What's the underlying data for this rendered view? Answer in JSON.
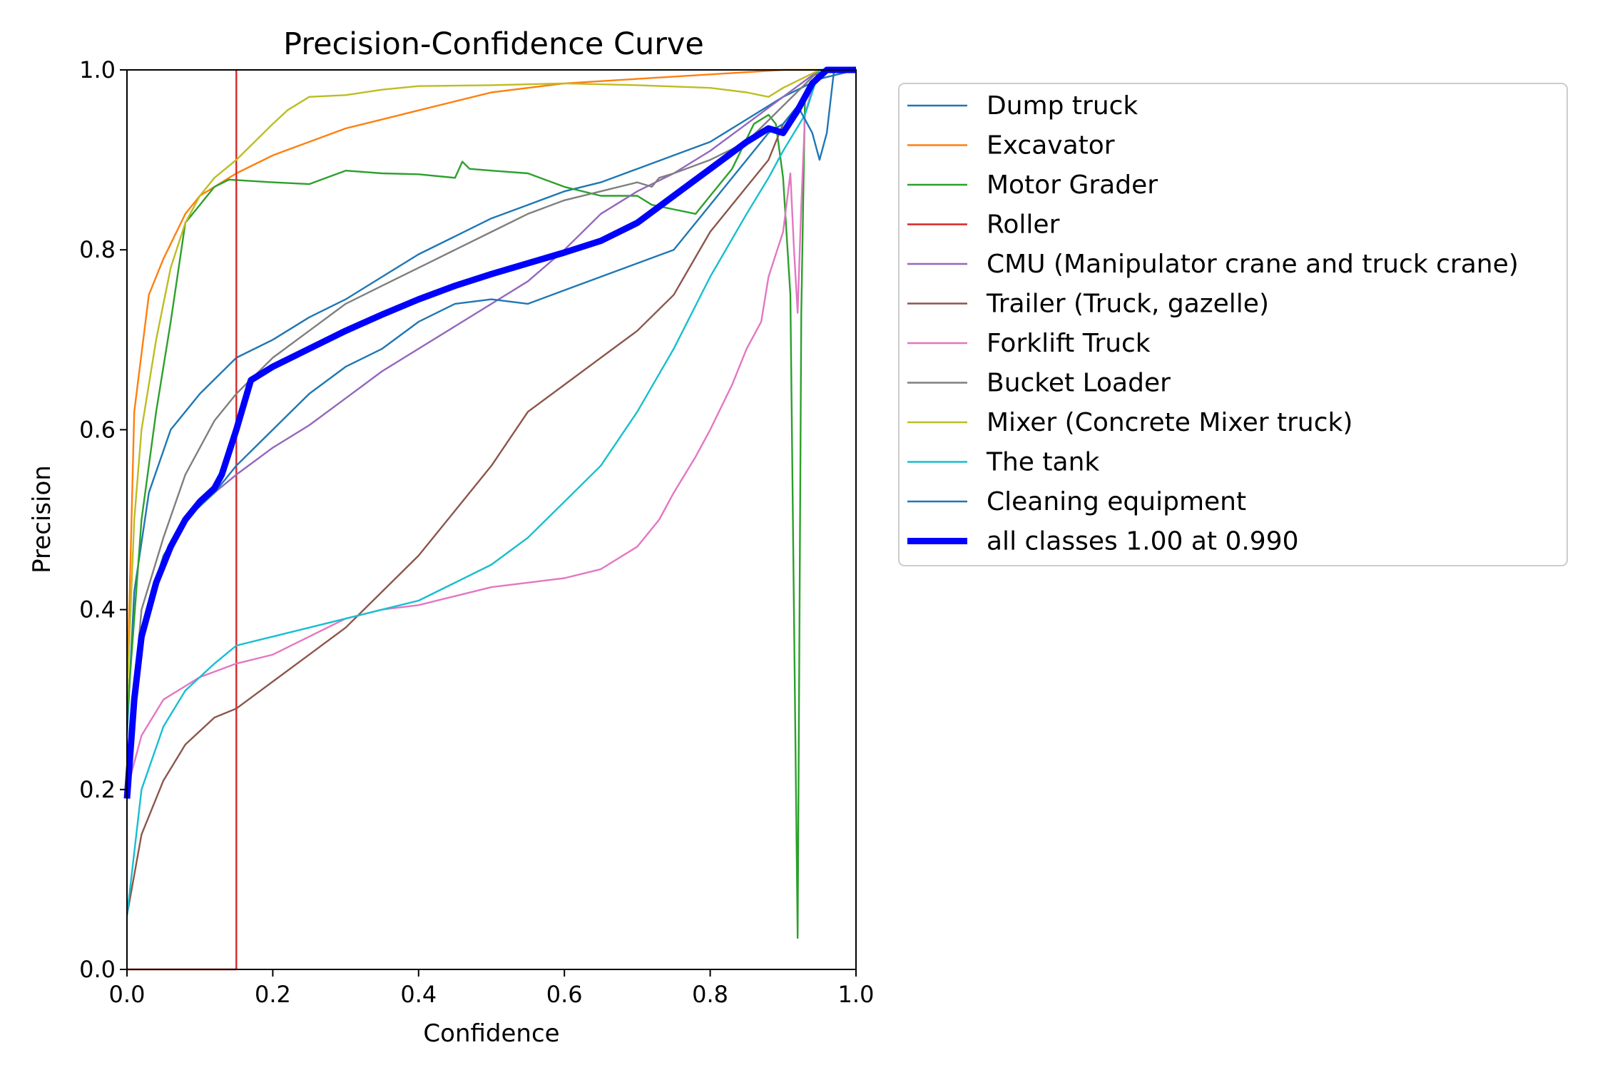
{
  "chart_data": {
    "type": "line",
    "title": "Precision-Confidence Curve",
    "xlabel": "Confidence",
    "ylabel": "Precision",
    "xlim": [
      0.0,
      1.0
    ],
    "ylim": [
      0.0,
      1.0
    ],
    "xticks": [
      "0.0",
      "0.2",
      "0.4",
      "0.6",
      "0.8",
      "1.0"
    ],
    "yticks": [
      "0.0",
      "0.2",
      "0.4",
      "0.6",
      "0.8",
      "1.0"
    ],
    "grid": false,
    "legend_position": "outside-right",
    "series": [
      {
        "name": "Dump truck",
        "color": "#1f77b4",
        "points": [
          [
            0.0,
            0.26
          ],
          [
            0.01,
            0.42
          ],
          [
            0.03,
            0.53
          ],
          [
            0.06,
            0.6
          ],
          [
            0.1,
            0.64
          ],
          [
            0.15,
            0.68
          ],
          [
            0.2,
            0.7
          ],
          [
            0.25,
            0.725
          ],
          [
            0.3,
            0.745
          ],
          [
            0.35,
            0.77
          ],
          [
            0.4,
            0.795
          ],
          [
            0.45,
            0.815
          ],
          [
            0.5,
            0.835
          ],
          [
            0.55,
            0.85
          ],
          [
            0.6,
            0.865
          ],
          [
            0.65,
            0.875
          ],
          [
            0.7,
            0.89
          ],
          [
            0.75,
            0.905
          ],
          [
            0.8,
            0.92
          ],
          [
            0.85,
            0.945
          ],
          [
            0.9,
            0.97
          ],
          [
            0.95,
            0.99
          ],
          [
            1.0,
            1.0
          ]
        ]
      },
      {
        "name": "Excavator",
        "color": "#ff7f0e",
        "points": [
          [
            0.0,
            0.3
          ],
          [
            0.01,
            0.62
          ],
          [
            0.03,
            0.75
          ],
          [
            0.05,
            0.79
          ],
          [
            0.08,
            0.84
          ],
          [
            0.1,
            0.86
          ],
          [
            0.15,
            0.885
          ],
          [
            0.2,
            0.905
          ],
          [
            0.25,
            0.92
          ],
          [
            0.3,
            0.935
          ],
          [
            0.35,
            0.945
          ],
          [
            0.4,
            0.955
          ],
          [
            0.45,
            0.965
          ],
          [
            0.5,
            0.975
          ],
          [
            0.6,
            0.985
          ],
          [
            0.7,
            0.99
          ],
          [
            0.8,
            0.995
          ],
          [
            0.9,
            1.0
          ],
          [
            1.0,
            1.0
          ]
        ]
      },
      {
        "name": "Motor Grader",
        "color": "#2ca02c",
        "points": [
          [
            0.0,
            0.28
          ],
          [
            0.02,
            0.5
          ],
          [
            0.04,
            0.62
          ],
          [
            0.06,
            0.72
          ],
          [
            0.08,
            0.83
          ],
          [
            0.1,
            0.85
          ],
          [
            0.12,
            0.87
          ],
          [
            0.14,
            0.878
          ],
          [
            0.2,
            0.875
          ],
          [
            0.25,
            0.873
          ],
          [
            0.3,
            0.888
          ],
          [
            0.35,
            0.885
          ],
          [
            0.4,
            0.884
          ],
          [
            0.45,
            0.88
          ],
          [
            0.46,
            0.898
          ],
          [
            0.47,
            0.89
          ],
          [
            0.5,
            0.888
          ],
          [
            0.55,
            0.885
          ],
          [
            0.6,
            0.87
          ],
          [
            0.65,
            0.86
          ],
          [
            0.7,
            0.86
          ],
          [
            0.72,
            0.85
          ],
          [
            0.75,
            0.845
          ],
          [
            0.78,
            0.84
          ],
          [
            0.8,
            0.86
          ],
          [
            0.83,
            0.89
          ],
          [
            0.86,
            0.94
          ],
          [
            0.88,
            0.95
          ],
          [
            0.89,
            0.94
          ],
          [
            0.9,
            0.88
          ],
          [
            0.91,
            0.75
          ],
          [
            0.92,
            0.035
          ],
          [
            0.925,
            0.73
          ],
          [
            0.93,
            0.97
          ],
          [
            0.95,
            1.0
          ],
          [
            1.0,
            1.0
          ]
        ]
      },
      {
        "name": "Roller",
        "color": "#d62728",
        "points": [
          [
            0.0,
            0.0
          ],
          [
            0.15,
            0.0
          ],
          [
            0.15,
            1.0
          ]
        ]
      },
      {
        "name": "CMU (Manipulator crane and truck crane)",
        "color": "#9467bd",
        "points": [
          [
            0.0,
            0.2
          ],
          [
            0.02,
            0.36
          ],
          [
            0.05,
            0.45
          ],
          [
            0.08,
            0.5
          ],
          [
            0.12,
            0.53
          ],
          [
            0.15,
            0.55
          ],
          [
            0.2,
            0.58
          ],
          [
            0.25,
            0.605
          ],
          [
            0.3,
            0.635
          ],
          [
            0.35,
            0.665
          ],
          [
            0.4,
            0.69
          ],
          [
            0.45,
            0.715
          ],
          [
            0.5,
            0.74
          ],
          [
            0.55,
            0.765
          ],
          [
            0.6,
            0.8
          ],
          [
            0.65,
            0.84
          ],
          [
            0.7,
            0.865
          ],
          [
            0.75,
            0.885
          ],
          [
            0.8,
            0.91
          ],
          [
            0.85,
            0.94
          ],
          [
            0.9,
            0.97
          ],
          [
            0.95,
            1.0
          ],
          [
            1.0,
            1.0
          ]
        ]
      },
      {
        "name": "Trailer (Truck, gazelle)",
        "color": "#8c564b",
        "points": [
          [
            0.0,
            0.06
          ],
          [
            0.02,
            0.15
          ],
          [
            0.05,
            0.21
          ],
          [
            0.08,
            0.25
          ],
          [
            0.12,
            0.28
          ],
          [
            0.15,
            0.29
          ],
          [
            0.2,
            0.32
          ],
          [
            0.25,
            0.35
          ],
          [
            0.3,
            0.38
          ],
          [
            0.35,
            0.42
          ],
          [
            0.4,
            0.46
          ],
          [
            0.45,
            0.51
          ],
          [
            0.5,
            0.56
          ],
          [
            0.55,
            0.62
          ],
          [
            0.6,
            0.65
          ],
          [
            0.65,
            0.68
          ],
          [
            0.7,
            0.71
          ],
          [
            0.75,
            0.75
          ],
          [
            0.8,
            0.82
          ],
          [
            0.85,
            0.87
          ],
          [
            0.88,
            0.9
          ],
          [
            0.9,
            0.94
          ],
          [
            0.93,
            0.97
          ],
          [
            0.95,
            1.0
          ],
          [
            1.0,
            1.0
          ]
        ]
      },
      {
        "name": "Forklift Truck",
        "color": "#e377c2",
        "points": [
          [
            0.0,
            0.2
          ],
          [
            0.02,
            0.26
          ],
          [
            0.05,
            0.3
          ],
          [
            0.1,
            0.325
          ],
          [
            0.15,
            0.34
          ],
          [
            0.2,
            0.35
          ],
          [
            0.25,
            0.37
          ],
          [
            0.3,
            0.39
          ],
          [
            0.35,
            0.4
          ],
          [
            0.4,
            0.405
          ],
          [
            0.45,
            0.415
          ],
          [
            0.5,
            0.425
          ],
          [
            0.55,
            0.43
          ],
          [
            0.6,
            0.435
          ],
          [
            0.65,
            0.445
          ],
          [
            0.7,
            0.47
          ],
          [
            0.73,
            0.5
          ],
          [
            0.75,
            0.53
          ],
          [
            0.78,
            0.57
          ],
          [
            0.8,
            0.6
          ],
          [
            0.83,
            0.65
          ],
          [
            0.85,
            0.69
          ],
          [
            0.87,
            0.72
          ],
          [
            0.88,
            0.77
          ],
          [
            0.9,
            0.82
          ],
          [
            0.91,
            0.885
          ],
          [
            0.915,
            0.8
          ],
          [
            0.92,
            0.73
          ],
          [
            0.925,
            0.85
          ],
          [
            0.93,
            0.95
          ],
          [
            0.94,
            0.98
          ],
          [
            0.95,
            1.0
          ],
          [
            1.0,
            1.0
          ]
        ]
      },
      {
        "name": "Bucket Loader",
        "color": "#7f7f7f",
        "points": [
          [
            0.0,
            0.22
          ],
          [
            0.02,
            0.4
          ],
          [
            0.05,
            0.48
          ],
          [
            0.08,
            0.55
          ],
          [
            0.12,
            0.61
          ],
          [
            0.15,
            0.64
          ],
          [
            0.2,
            0.68
          ],
          [
            0.25,
            0.71
          ],
          [
            0.3,
            0.74
          ],
          [
            0.35,
            0.76
          ],
          [
            0.4,
            0.78
          ],
          [
            0.45,
            0.8
          ],
          [
            0.5,
            0.82
          ],
          [
            0.55,
            0.84
          ],
          [
            0.6,
            0.855
          ],
          [
            0.65,
            0.865
          ],
          [
            0.7,
            0.875
          ],
          [
            0.72,
            0.87
          ],
          [
            0.73,
            0.88
          ],
          [
            0.75,
            0.885
          ],
          [
            0.8,
            0.9
          ],
          [
            0.85,
            0.92
          ],
          [
            0.9,
            0.96
          ],
          [
            0.95,
            1.0
          ],
          [
            1.0,
            1.0
          ]
        ]
      },
      {
        "name": "Mixer (Concrete Mixer truck)",
        "color": "#bcbd22",
        "points": [
          [
            0.0,
            0.3
          ],
          [
            0.01,
            0.5
          ],
          [
            0.02,
            0.6
          ],
          [
            0.04,
            0.7
          ],
          [
            0.06,
            0.78
          ],
          [
            0.08,
            0.83
          ],
          [
            0.1,
            0.86
          ],
          [
            0.12,
            0.88
          ],
          [
            0.15,
            0.9
          ],
          [
            0.2,
            0.94
          ],
          [
            0.22,
            0.955
          ],
          [
            0.25,
            0.97
          ],
          [
            0.3,
            0.972
          ],
          [
            0.35,
            0.978
          ],
          [
            0.4,
            0.982
          ],
          [
            0.5,
            0.983
          ],
          [
            0.6,
            0.985
          ],
          [
            0.7,
            0.983
          ],
          [
            0.8,
            0.98
          ],
          [
            0.85,
            0.975
          ],
          [
            0.88,
            0.97
          ],
          [
            0.9,
            0.98
          ],
          [
            0.95,
            1.0
          ],
          [
            1.0,
            1.0
          ]
        ]
      },
      {
        "name": "The tank",
        "color": "#17becf",
        "points": [
          [
            0.0,
            0.06
          ],
          [
            0.02,
            0.2
          ],
          [
            0.05,
            0.27
          ],
          [
            0.08,
            0.31
          ],
          [
            0.12,
            0.34
          ],
          [
            0.15,
            0.36
          ],
          [
            0.2,
            0.37
          ],
          [
            0.25,
            0.38
          ],
          [
            0.3,
            0.39
          ],
          [
            0.35,
            0.4
          ],
          [
            0.4,
            0.41
          ],
          [
            0.45,
            0.43
          ],
          [
            0.5,
            0.45
          ],
          [
            0.55,
            0.48
          ],
          [
            0.6,
            0.52
          ],
          [
            0.65,
            0.56
          ],
          [
            0.7,
            0.62
          ],
          [
            0.75,
            0.69
          ],
          [
            0.8,
            0.77
          ],
          [
            0.85,
            0.84
          ],
          [
            0.88,
            0.88
          ],
          [
            0.9,
            0.91
          ],
          [
            0.93,
            0.95
          ],
          [
            0.95,
            1.0
          ],
          [
            1.0,
            1.0
          ]
        ]
      },
      {
        "name": "Cleaning equipment",
        "color": "#1f77b4",
        "points": [
          [
            0.0,
            0.2
          ],
          [
            0.02,
            0.38
          ],
          [
            0.05,
            0.46
          ],
          [
            0.08,
            0.5
          ],
          [
            0.12,
            0.53
          ],
          [
            0.15,
            0.56
          ],
          [
            0.2,
            0.6
          ],
          [
            0.25,
            0.64
          ],
          [
            0.3,
            0.67
          ],
          [
            0.35,
            0.69
          ],
          [
            0.4,
            0.72
          ],
          [
            0.45,
            0.74
          ],
          [
            0.5,
            0.745
          ],
          [
            0.55,
            0.74
          ],
          [
            0.6,
            0.755
          ],
          [
            0.65,
            0.77
          ],
          [
            0.7,
            0.785
          ],
          [
            0.75,
            0.8
          ],
          [
            0.8,
            0.85
          ],
          [
            0.85,
            0.9
          ],
          [
            0.88,
            0.93
          ],
          [
            0.9,
            0.94
          ],
          [
            0.92,
            0.96
          ],
          [
            0.94,
            0.93
          ],
          [
            0.95,
            0.9
          ],
          [
            0.96,
            0.93
          ],
          [
            0.97,
            1.0
          ],
          [
            1.0,
            1.0
          ]
        ]
      },
      {
        "name": "all classes 1.00 at 0.990",
        "color": "#0000ff",
        "bold": true,
        "points": [
          [
            0.0,
            0.19
          ],
          [
            0.01,
            0.3
          ],
          [
            0.02,
            0.37
          ],
          [
            0.04,
            0.43
          ],
          [
            0.06,
            0.47
          ],
          [
            0.08,
            0.5
          ],
          [
            0.1,
            0.52
          ],
          [
            0.12,
            0.535
          ],
          [
            0.13,
            0.55
          ],
          [
            0.15,
            0.6
          ],
          [
            0.17,
            0.655
          ],
          [
            0.2,
            0.67
          ],
          [
            0.25,
            0.69
          ],
          [
            0.3,
            0.71
          ],
          [
            0.35,
            0.728
          ],
          [
            0.4,
            0.745
          ],
          [
            0.45,
            0.76
          ],
          [
            0.5,
            0.773
          ],
          [
            0.55,
            0.785
          ],
          [
            0.6,
            0.797
          ],
          [
            0.65,
            0.81
          ],
          [
            0.7,
            0.83
          ],
          [
            0.75,
            0.86
          ],
          [
            0.8,
            0.89
          ],
          [
            0.85,
            0.92
          ],
          [
            0.88,
            0.935
          ],
          [
            0.9,
            0.93
          ],
          [
            0.92,
            0.955
          ],
          [
            0.94,
            0.985
          ],
          [
            0.96,
            1.0
          ],
          [
            0.99,
            1.0
          ],
          [
            1.0,
            1.0
          ]
        ]
      }
    ]
  }
}
